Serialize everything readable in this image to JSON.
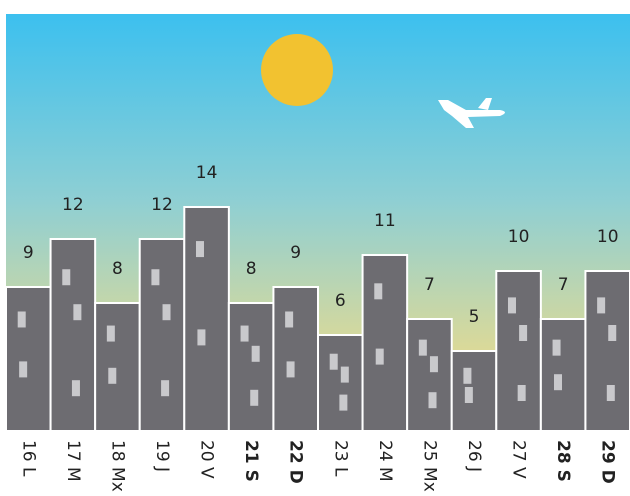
{
  "chart_data": {
    "type": "bar",
    "categories": [
      "16 L",
      "17 M",
      "18 Mx",
      "19 J",
      "20 V",
      "21 S",
      "22 D",
      "23 L",
      "24 M",
      "25 Mx",
      "26 J",
      "27 V",
      "28 S",
      "29 D"
    ],
    "values": [
      9,
      12,
      8,
      12,
      14,
      8,
      9,
      6,
      11,
      7,
      5,
      10,
      7,
      10
    ],
    "color": "#6d6c71",
    "bold_categories": [
      5,
      6,
      12,
      13
    ]
  }
}
